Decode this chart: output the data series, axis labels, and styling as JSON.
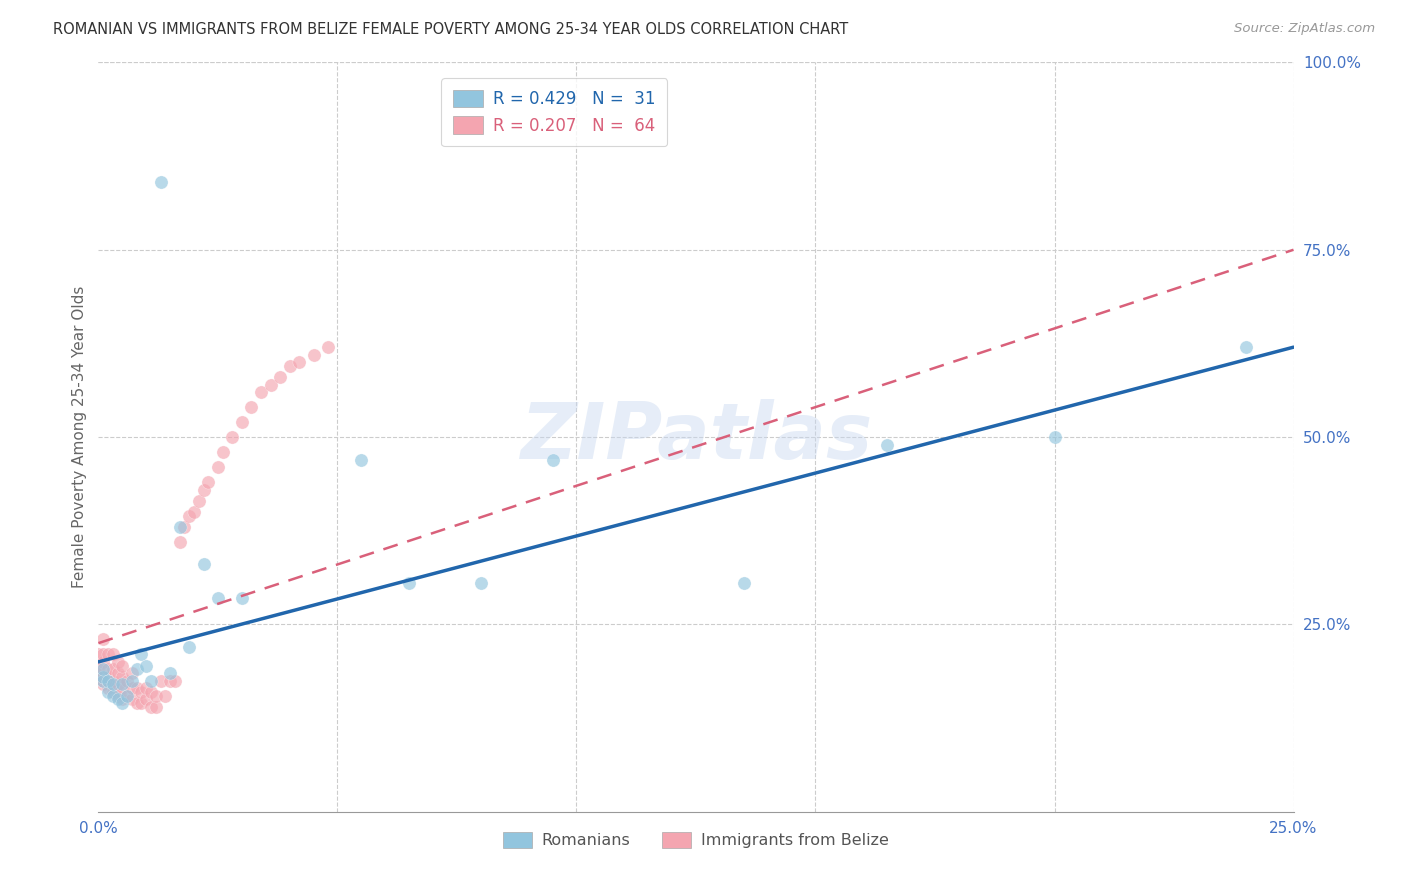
{
  "title": "ROMANIAN VS IMMIGRANTS FROM BELIZE FEMALE POVERTY AMONG 25-34 YEAR OLDS CORRELATION CHART",
  "source": "Source: ZipAtlas.com",
  "ylabel": "Female Poverty Among 25-34 Year Olds",
  "xlim": [
    0.0,
    0.25
  ],
  "ylim": [
    0.0,
    1.0
  ],
  "blue_color": "#92c5de",
  "pink_color": "#f4a5b0",
  "blue_line_color": "#2166ac",
  "pink_line_color": "#d9607a",
  "watermark": "ZIPatlas",
  "background_color": "#ffffff",
  "grid_color": "#cccccc",
  "rom_x": [
    0.001,
    0.001,
    0.001,
    0.002,
    0.002,
    0.003,
    0.003,
    0.004,
    0.005,
    0.005,
    0.006,
    0.007,
    0.008,
    0.009,
    0.01,
    0.011,
    0.013,
    0.015,
    0.017,
    0.019,
    0.022,
    0.025,
    0.03,
    0.055,
    0.065,
    0.08,
    0.095,
    0.135,
    0.165,
    0.2,
    0.24
  ],
  "rom_y": [
    0.175,
    0.18,
    0.19,
    0.16,
    0.175,
    0.155,
    0.17,
    0.15,
    0.145,
    0.17,
    0.155,
    0.175,
    0.19,
    0.21,
    0.195,
    0.175,
    0.84,
    0.185,
    0.38,
    0.22,
    0.33,
    0.285,
    0.285,
    0.47,
    0.305,
    0.305,
    0.47,
    0.305,
    0.49,
    0.5,
    0.62
  ],
  "bel_x": [
    0.0,
    0.0,
    0.0,
    0.001,
    0.001,
    0.001,
    0.001,
    0.001,
    0.001,
    0.002,
    0.002,
    0.002,
    0.002,
    0.002,
    0.003,
    0.003,
    0.003,
    0.003,
    0.004,
    0.004,
    0.004,
    0.004,
    0.005,
    0.005,
    0.005,
    0.005,
    0.006,
    0.006,
    0.007,
    0.007,
    0.007,
    0.008,
    0.008,
    0.009,
    0.009,
    0.01,
    0.01,
    0.011,
    0.011,
    0.012,
    0.012,
    0.013,
    0.014,
    0.015,
    0.016,
    0.017,
    0.018,
    0.019,
    0.02,
    0.021,
    0.022,
    0.023,
    0.025,
    0.026,
    0.028,
    0.03,
    0.032,
    0.034,
    0.036,
    0.038,
    0.04,
    0.042,
    0.045,
    0.048
  ],
  "bel_y": [
    0.185,
    0.19,
    0.21,
    0.17,
    0.18,
    0.2,
    0.21,
    0.23,
    0.175,
    0.165,
    0.18,
    0.19,
    0.21,
    0.175,
    0.16,
    0.175,
    0.19,
    0.21,
    0.155,
    0.17,
    0.185,
    0.2,
    0.15,
    0.165,
    0.18,
    0.195,
    0.155,
    0.175,
    0.15,
    0.165,
    0.185,
    0.145,
    0.165,
    0.145,
    0.16,
    0.15,
    0.165,
    0.14,
    0.16,
    0.14,
    0.155,
    0.175,
    0.155,
    0.175,
    0.175,
    0.36,
    0.38,
    0.395,
    0.4,
    0.415,
    0.43,
    0.44,
    0.46,
    0.48,
    0.5,
    0.52,
    0.54,
    0.56,
    0.57,
    0.58,
    0.595,
    0.6,
    0.61,
    0.62
  ],
  "rom_line_x0": 0.0,
  "rom_line_x1": 0.25,
  "rom_line_y0": 0.2,
  "rom_line_y1": 0.62,
  "bel_line_x0": 0.0,
  "bel_line_x1": 0.25,
  "bel_line_y0": 0.225,
  "bel_line_y1": 0.75
}
